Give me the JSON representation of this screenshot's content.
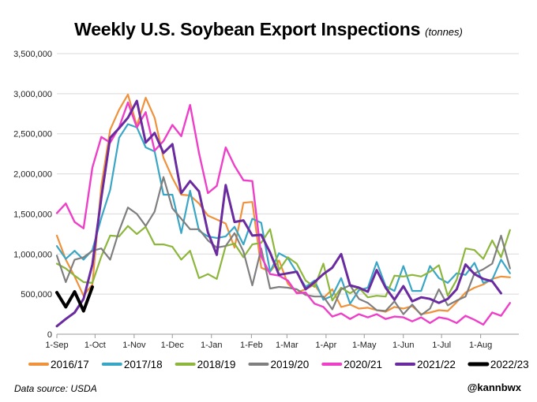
{
  "header": {
    "title": "Weekly U.S. Soybean Export Inspections",
    "subtitle": "(tonnes)"
  },
  "footer": {
    "source": "Data source: USDA",
    "handle": "@kannbwx"
  },
  "chart_data": {
    "type": "line",
    "title": "Weekly U.S. Soybean Export Inspections",
    "ylabel": "tonnes",
    "ylim": [
      0,
      3500000
    ],
    "yticks": [
      0,
      500000,
      1000000,
      1500000,
      2000000,
      2500000,
      3000000,
      3500000
    ],
    "ytick_labels": [
      "0",
      "500,000",
      "1,000,000",
      "1,500,000",
      "2,000,000",
      "2,500,000",
      "3,000,000",
      "3,500,000"
    ],
    "xlim": [
      0,
      52
    ],
    "xticks": [
      {
        "week": 0,
        "label": "1-Sep"
      },
      {
        "week": 4.3,
        "label": "1-Oct"
      },
      {
        "week": 8.7,
        "label": "1-Nov"
      },
      {
        "week": 13,
        "label": "1-Dec"
      },
      {
        "week": 17.4,
        "label": "1-Jan"
      },
      {
        "week": 21.9,
        "label": "1-Feb"
      },
      {
        "week": 25.9,
        "label": "1-Mar"
      },
      {
        "week": 30.3,
        "label": "1-Apr"
      },
      {
        "week": 34.6,
        "label": "1-May"
      },
      {
        "week": 39,
        "label": "1-Jun"
      },
      {
        "week": 43.3,
        "label": "1-Jul"
      },
      {
        "week": 47.7,
        "label": "1-Aug"
      }
    ],
    "grid": true,
    "legend_position": "bottom",
    "series": [
      {
        "name": "2016/17",
        "color": "#f0913b",
        "width": 2.2,
        "values": [
          1230000,
          930000,
          720000,
          480000,
          620000,
          1850000,
          2550000,
          2800000,
          2990000,
          2600000,
          2950000,
          2700000,
          2200000,
          1950000,
          1740000,
          1730000,
          1630000,
          1480000,
          1430000,
          1380000,
          1080000,
          1640000,
          1650000,
          830000,
          780000,
          920000,
          630000,
          520000,
          560000,
          620000,
          450000,
          560000,
          340000,
          370000,
          320000,
          330000,
          300000,
          280000,
          340000,
          320000,
          350000,
          250000,
          270000,
          300000,
          290000,
          400000,
          520000,
          580000,
          620000,
          690000,
          720000,
          710000
        ]
      },
      {
        "name": "2017/18",
        "color": "#3aa6c6",
        "width": 2.2,
        "values": [
          1100000,
          940000,
          1040000,
          930000,
          1050000,
          1450000,
          1800000,
          2450000,
          2620000,
          2580000,
          2330000,
          2280000,
          1740000,
          1740000,
          1260000,
          1790000,
          1290000,
          1220000,
          1200000,
          1220000,
          1340000,
          1120000,
          1440000,
          1390000,
          780000,
          1010000,
          950000,
          770000,
          590000,
          670000,
          430000,
          480000,
          700000,
          380000,
          550000,
          580000,
          900000,
          600000,
          540000,
          850000,
          540000,
          540000,
          850000,
          700000,
          640000,
          760000,
          740000,
          890000,
          640000,
          680000,
          930000,
          760000
        ]
      },
      {
        "name": "2018/19",
        "color": "#8db63c",
        "width": 2.2,
        "values": [
          880000,
          820000,
          730000,
          650000,
          640000,
          970000,
          1230000,
          1220000,
          1350000,
          1250000,
          1340000,
          1120000,
          1120000,
          1090000,
          930000,
          1040000,
          700000,
          750000,
          690000,
          1100000,
          1130000,
          960000,
          1120000,
          1140000,
          1310000,
          800000,
          960000,
          880000,
          670000,
          590000,
          880000,
          420000,
          580000,
          510000,
          580000,
          460000,
          480000,
          470000,
          730000,
          720000,
          740000,
          720000,
          780000,
          860000,
          480000,
          680000,
          1070000,
          1050000,
          940000,
          1170000,
          960000,
          1300000
        ]
      },
      {
        "name": "2019/20",
        "color": "#7f7f7f",
        "width": 2.2,
        "values": [
          980000,
          650000,
          930000,
          960000,
          1040000,
          1070000,
          930000,
          1290000,
          1580000,
          1500000,
          1350000,
          1530000,
          1960000,
          1570000,
          1440000,
          1310000,
          1310000,
          1170000,
          1080000,
          1100000,
          1260000,
          1030000,
          610000,
          1070000,
          570000,
          590000,
          580000,
          560000,
          490000,
          470000,
          470000,
          310000,
          560000,
          610000,
          440000,
          390000,
          300000,
          290000,
          410000,
          250000,
          370000,
          240000,
          320000,
          560000,
          360000,
          420000,
          470000,
          760000,
          810000,
          880000,
          1230000,
          820000
        ]
      },
      {
        "name": "2020/21",
        "color": "#ee3fc8",
        "width": 2.4,
        "values": [
          1510000,
          1630000,
          1400000,
          1320000,
          2080000,
          2460000,
          2390000,
          2580000,
          2890000,
          2580000,
          2770000,
          2290000,
          2410000,
          2610000,
          2470000,
          2860000,
          2260000,
          1760000,
          1850000,
          2330000,
          2100000,
          1920000,
          1910000,
          970000,
          750000,
          730000,
          670000,
          510000,
          520000,
          380000,
          340000,
          220000,
          260000,
          190000,
          250000,
          210000,
          250000,
          190000,
          220000,
          210000,
          160000,
          210000,
          140000,
          210000,
          190000,
          140000,
          230000,
          180000,
          120000,
          270000,
          230000,
          390000
        ]
      },
      {
        "name": "2021/22",
        "color": "#6a2ba0",
        "width": 3,
        "values": [
          100000,
          190000,
          270000,
          440000,
          870000,
          1700000,
          2450000,
          2570000,
          2700000,
          2910000,
          2390000,
          2510000,
          2260000,
          2370000,
          1760000,
          1910000,
          1780000,
          1270000,
          990000,
          1860000,
          1400000,
          1420000,
          1230000,
          1240000,
          1020000,
          740000,
          760000,
          780000,
          560000,
          650000,
          750000,
          830000,
          1000000,
          610000,
          580000,
          530000,
          800000,
          580000,
          430000,
          600000,
          410000,
          460000,
          440000,
          390000,
          440000,
          560000,
          870000,
          750000,
          690000,
          660000,
          510000
        ]
      },
      {
        "name": "2022/23",
        "color": "#000000",
        "width": 4,
        "values": [
          520000,
          340000,
          530000,
          290000,
          590000
        ]
      }
    ]
  }
}
